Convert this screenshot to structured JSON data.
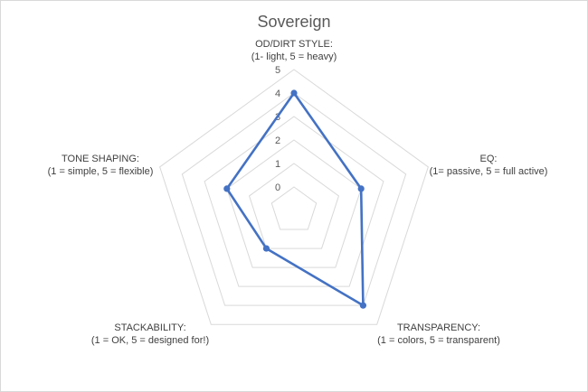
{
  "chart_data": {
    "type": "radar",
    "title": "Sovereign",
    "axes": [
      {
        "name": "OD/DIRT STYLE:",
        "subtitle": "(1- light, 5 = heavy)"
      },
      {
        "name": "EQ:",
        "subtitle": "(1= passive, 5 = full active)"
      },
      {
        "name": "TRANSPARENCY:",
        "subtitle": "(1 = colors, 5 = transparent)"
      },
      {
        "name": "STACKABILITY:",
        "subtitle": "(1 = OK, 5 = designed for!)"
      },
      {
        "name": "TONE SHAPING:",
        "subtitle": "(1 = simple, 5 = flexible)"
      }
    ],
    "ticks": [
      "0",
      "1",
      "2",
      "3",
      "4",
      "5"
    ],
    "range": [
      0,
      5
    ],
    "series": [
      {
        "values": [
          4,
          2,
          4,
          1,
          2
        ],
        "color": "#4472c4"
      }
    ],
    "grid_color": "#d9d9d9",
    "grid": true,
    "legend": false
  }
}
